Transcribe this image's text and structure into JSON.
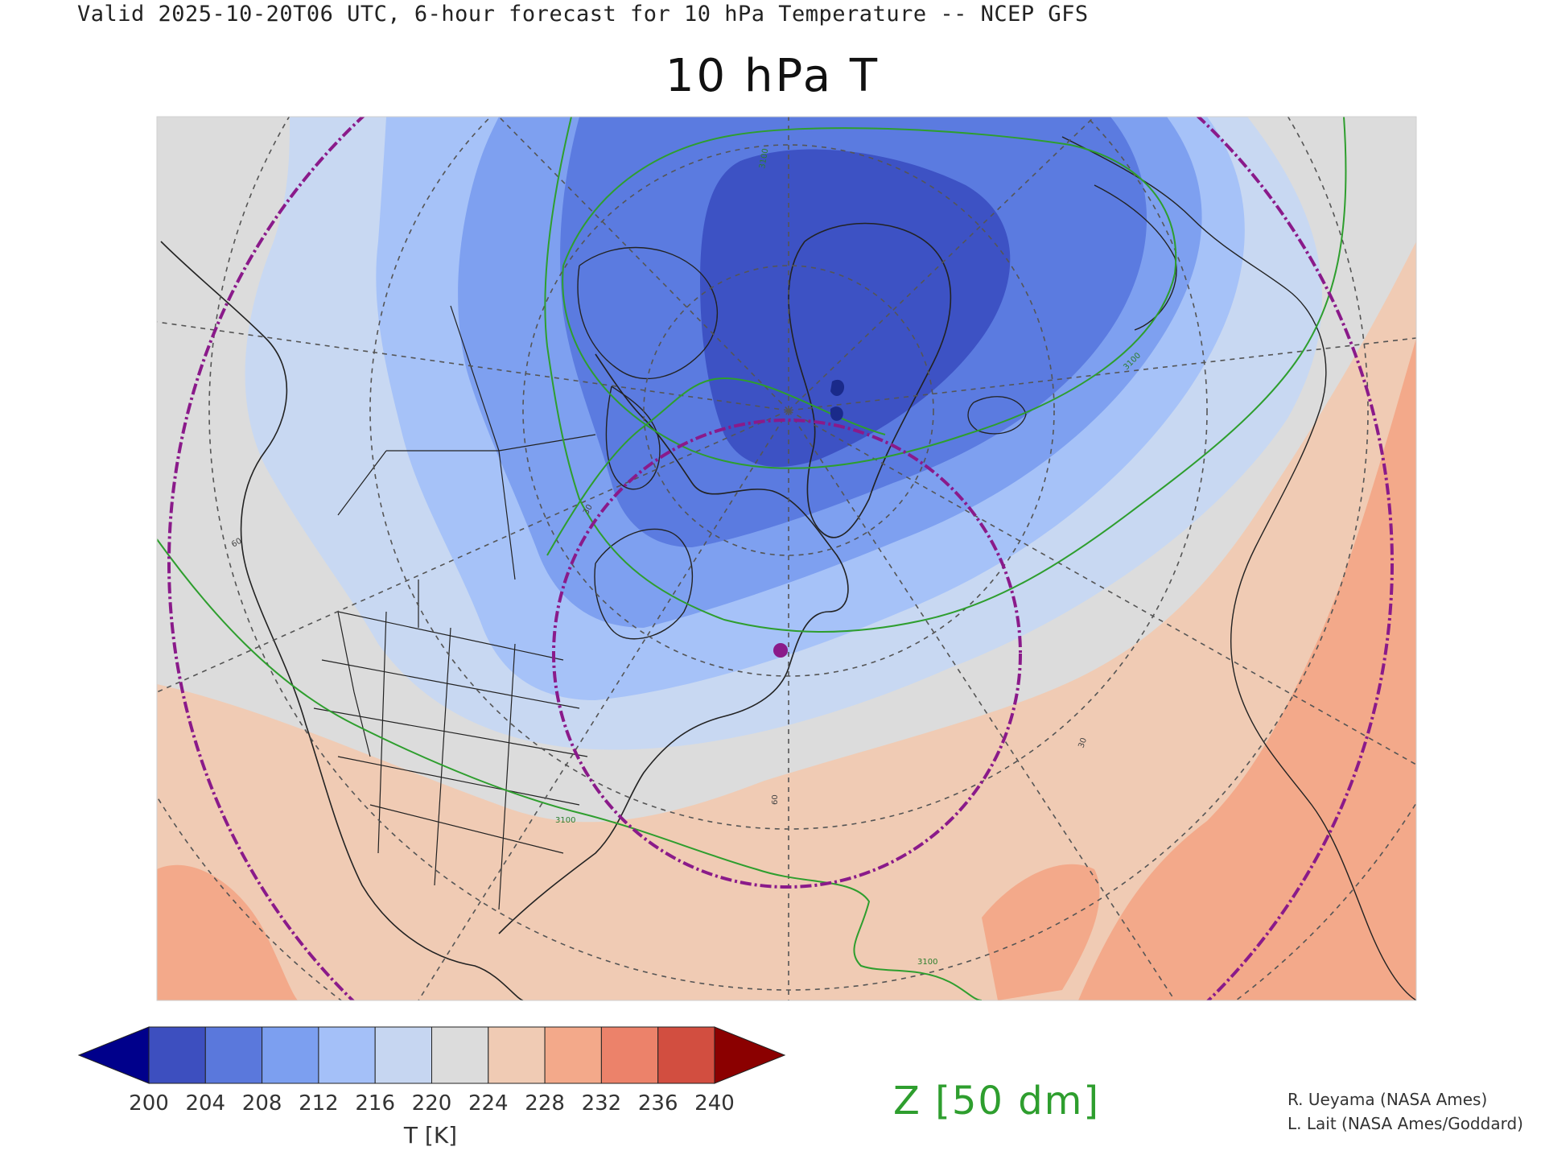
{
  "header": {
    "valid_line": "Valid 2025-10-20T06 UTC, 6-hour forecast for 10 hPa Temperature -- NCEP GFS",
    "title": "10 hPa T"
  },
  "map": {
    "variable": "10 hPa Temperature",
    "projection": "polar stereographic (north)",
    "contour_labels": [
      "3100",
      "3100",
      "3100",
      "3100"
    ],
    "graticule_labels": [
      "60",
      "60",
      "30",
      "30"
    ],
    "field_colors": {
      "coldest_core": "#3d52c4",
      "cold": "#5b7be0",
      "mid_cold": "#7ea0f0",
      "cool": "#a6c2f8",
      "pale": "#c8d8f2",
      "neutral": "#dcdcdc",
      "warm1": "#f0cbb4",
      "warm2": "#f3a98a"
    },
    "contour_color": "#2e9e2e",
    "circle_color": "#8a1a8a",
    "marker_color": "#8a1a8a"
  },
  "colorbar": {
    "ticks": [
      "200",
      "204",
      "208",
      "212",
      "216",
      "220",
      "224",
      "228",
      "232",
      "236",
      "240"
    ],
    "label": "T [K]",
    "low_extend_color": "#00008b",
    "high_extend_color": "#8b0000",
    "colors": [
      "#3d4fbf",
      "#5a78dc",
      "#7c9ff0",
      "#a4c0f8",
      "#c6d6f1",
      "#dcdcdc",
      "#f0cbb4",
      "#f3a98a",
      "#ec826a",
      "#d24e40"
    ]
  },
  "contour_key": {
    "label": "Z [50 dm]"
  },
  "credits": {
    "line1": "R. Ueyama (NASA Ames)",
    "line2": "L. Lait (NASA Ames/Goddard)"
  }
}
